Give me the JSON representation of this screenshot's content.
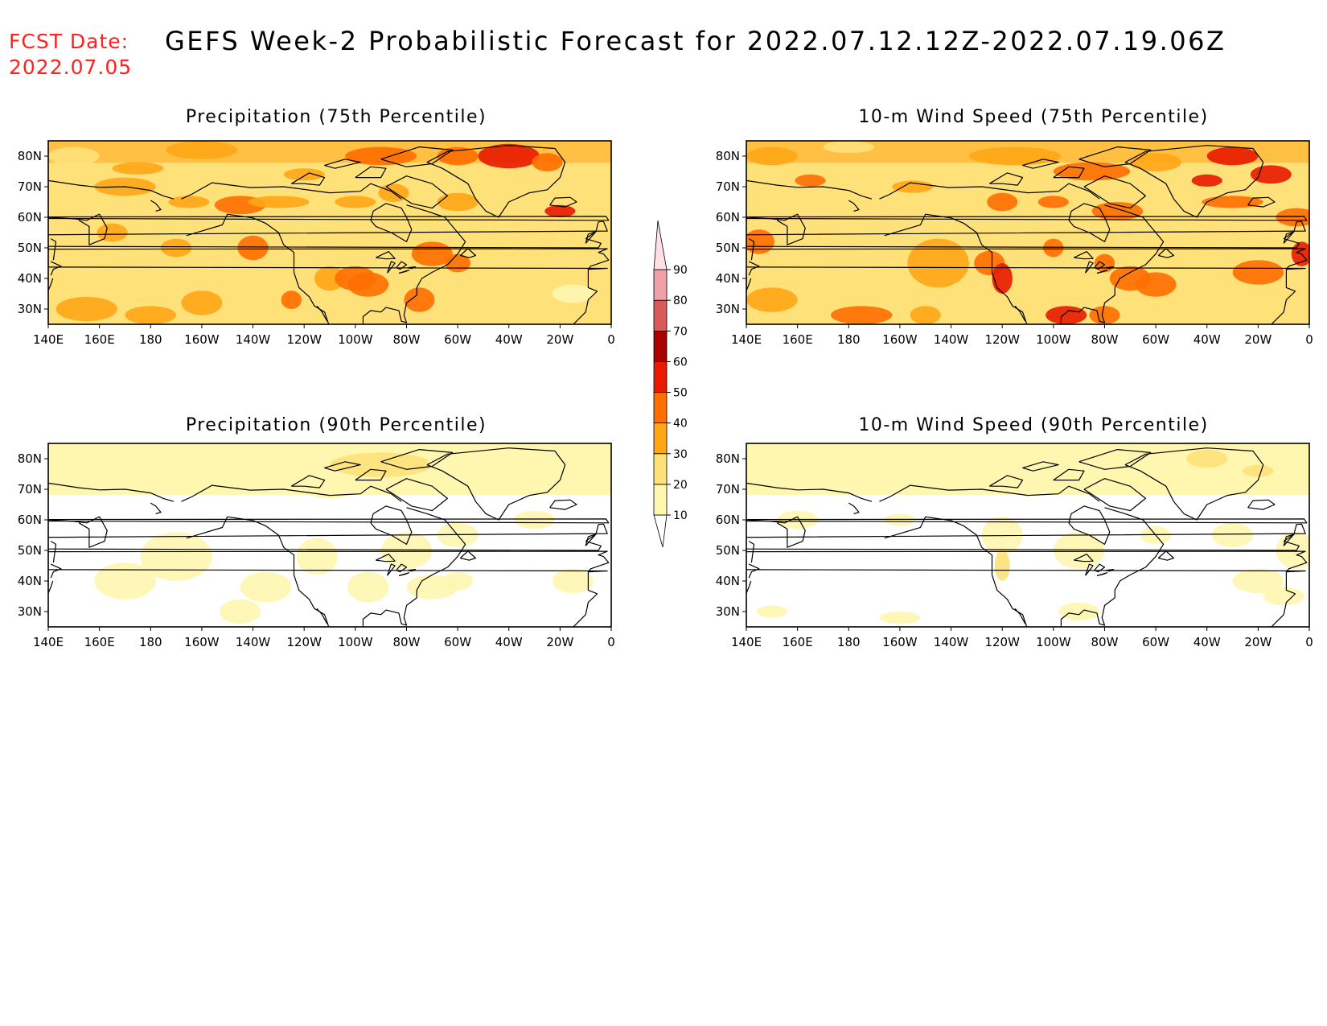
{
  "header": {
    "fcst_date_label": "FCST Date:",
    "fcst_date_value": "2022.07.05",
    "title": "GEFS Week-2 Probabilistic Forecast for 2022.07.12.12Z-2022.07.19.06Z"
  },
  "x_tick_labels": [
    "140E",
    "160E",
    "180",
    "160W",
    "140W",
    "120W",
    "100W",
    "80W",
    "60W",
    "40W",
    "20W",
    "0"
  ],
  "y_tick_labels": [
    "80N",
    "70N",
    "60N",
    "50N",
    "40N",
    "30N"
  ],
  "colorbar": {
    "levels": [
      "10",
      "20",
      "30",
      "40",
      "50",
      "60",
      "70",
      "80",
      "90"
    ],
    "colors": [
      "#fff6b0",
      "#ffe17a",
      "#ffa617",
      "#ff6e00",
      "#e81a00",
      "#a80000",
      "#d85a5a",
      "#f0a0a8",
      "#ffe0e6"
    ]
  },
  "colors": {
    "land_outline": "#000000",
    "fcst_date_text": "#ff2020"
  },
  "panels": [
    {
      "id": "precip-75",
      "title": "Precipitation (75th Percentile)",
      "intensity": "high"
    },
    {
      "id": "wind-75",
      "title": "10-m Wind Speed (75th Percentile)",
      "intensity": "high"
    },
    {
      "id": "precip-90",
      "title": "Precipitation (90th Percentile)",
      "intensity": "low"
    },
    {
      "id": "wind-90",
      "title": "10-m Wind Speed (90th Percentile)",
      "intensity": "low"
    }
  ]
}
